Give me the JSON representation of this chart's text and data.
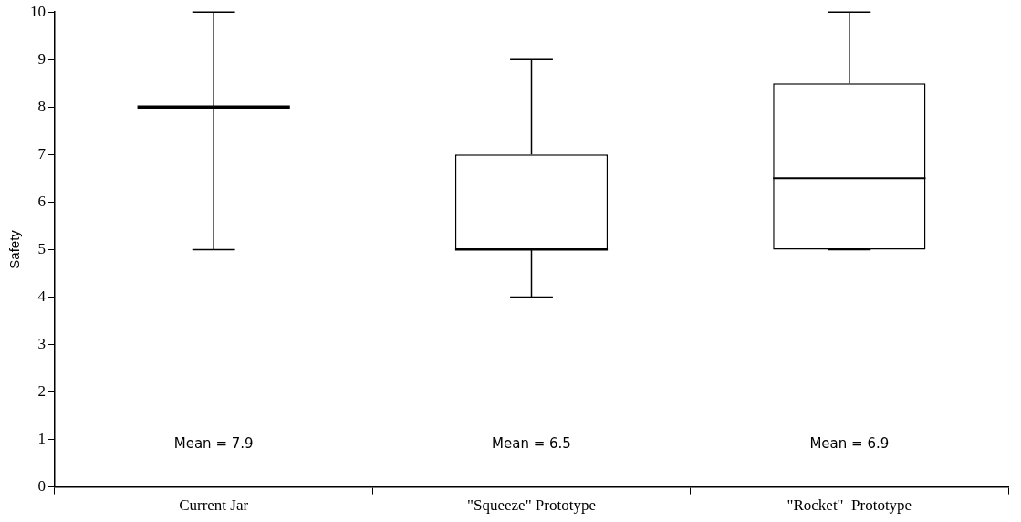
{
  "chart_data": {
    "type": "box",
    "ylabel": "Safety",
    "categories": [
      "Current Jar",
      "\"Squeeze\" Prototype",
      "\"Rocket\"  Prototype"
    ],
    "boxes": [
      {
        "low": 5,
        "q1": 8,
        "median": 8,
        "q3": 8,
        "high": 10
      },
      {
        "low": 4,
        "q1": 5,
        "median": 5,
        "q3": 7,
        "high": 9
      },
      {
        "low": 5,
        "q1": 5,
        "median": 6.5,
        "q3": 8.5,
        "high": 10
      }
    ],
    "ylim": [
      0,
      10
    ],
    "yticks": [
      0,
      1,
      2,
      3,
      4,
      5,
      6,
      7,
      8,
      9,
      10
    ],
    "annotations": [
      "Mean = 7.9",
      "Mean = 6.5",
      "Mean = 6.9"
    ]
  }
}
